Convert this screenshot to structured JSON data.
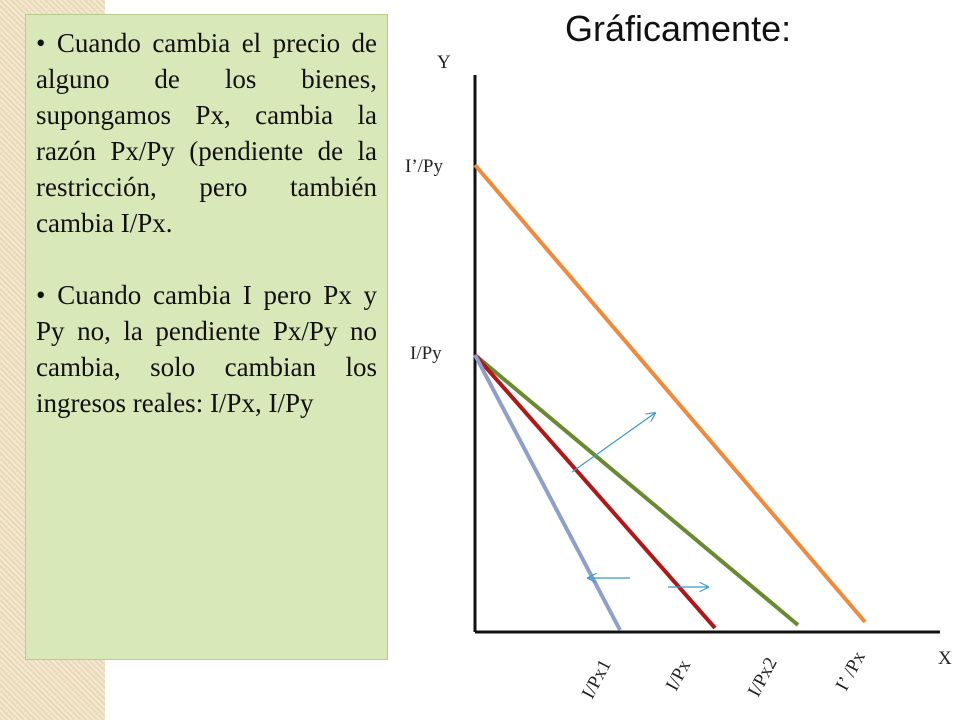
{
  "title": "Gráficamente:",
  "bullets": [
    "Cuando cambia el precio de alguno de los bienes, supongamos Px, cambia la razón Px/Py (pendiente de la restricción, pero también cambia I/Px.",
    "Cuando cambia I pero Px y Py no, la pendiente Px/Py no cambia, solo cambian los ingresos reales: I/Px, I/Py"
  ],
  "diagram": {
    "y_axis_label": "Y",
    "x_axis_label": "X",
    "y_intercepts": [
      "I’/Py",
      "I/Py"
    ],
    "x_intercepts": [
      "I/Px1",
      "I/Px",
      "I/Px2",
      "I’ /Px"
    ]
  }
}
